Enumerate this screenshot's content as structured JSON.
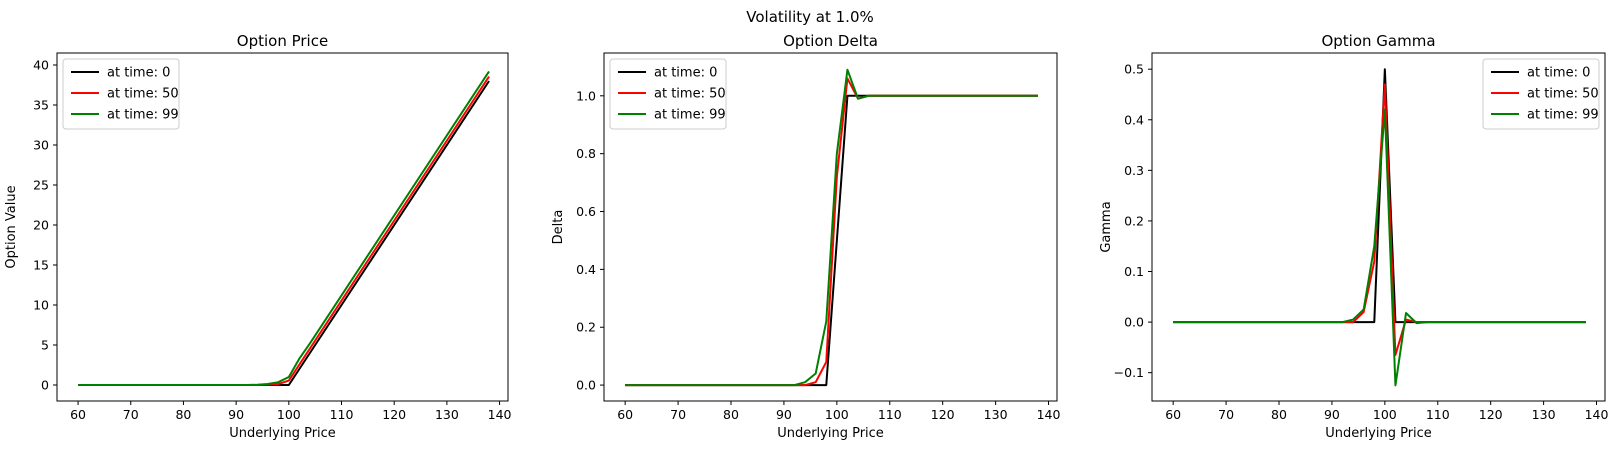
{
  "figure": {
    "suptitle": "Volatility at 1.0%"
  },
  "colors": {
    "t0": "#000000",
    "t50": "#ff0000",
    "t99": "#008000"
  },
  "chart_data": [
    {
      "type": "line",
      "title": "Option Price",
      "xlabel": "Underlying Price",
      "ylabel": "Option Value",
      "xlim": [
        56,
        141.6
      ],
      "ylim": [
        -2,
        41.5
      ],
      "xticks": [
        60,
        70,
        80,
        90,
        100,
        110,
        120,
        130,
        140
      ],
      "yticks": [
        0,
        5,
        10,
        15,
        20,
        25,
        30,
        35,
        40
      ],
      "legend": "top-left",
      "grid": false,
      "series": [
        {
          "name": "at time: 0",
          "color": "#000000",
          "x": [
            60,
            96,
            98,
            100,
            102,
            104,
            138
          ],
          "y": [
            0,
            0,
            0,
            0,
            2,
            4,
            38
          ]
        },
        {
          "name": "at time: 50",
          "color": "#ff0000",
          "x": [
            60,
            94,
            96,
            98,
            100,
            102,
            104,
            138
          ],
          "y": [
            0,
            0,
            0.05,
            0.12,
            0.55,
            2.55,
            4.55,
            38.55
          ]
        },
        {
          "name": "at time: 99",
          "color": "#008000",
          "x": [
            60,
            92,
            94,
            96,
            98,
            100,
            102,
            104,
            138
          ],
          "y": [
            0,
            0,
            0.03,
            0.12,
            0.35,
            1.0,
            3.3,
            5.2,
            39.2
          ]
        }
      ]
    },
    {
      "type": "line",
      "title": "Option Delta",
      "xlabel": "Underlying Price",
      "ylabel": "Delta",
      "xlim": [
        56,
        141.6
      ],
      "ylim": [
        -0.055,
        1.148
      ],
      "xticks": [
        60,
        70,
        80,
        90,
        100,
        110,
        120,
        130,
        140
      ],
      "yticks": [
        "0.0",
        "0.2",
        "0.4",
        "0.6",
        "0.8",
        "1.0"
      ],
      "legend": "top-left",
      "grid": false,
      "series": [
        {
          "name": "at time: 0",
          "color": "#000000",
          "x": [
            60,
            98,
            100,
            102,
            104,
            106,
            138
          ],
          "y": [
            0,
            0,
            0.5,
            1.0,
            1.0,
            1.0,
            1.0
          ]
        },
        {
          "name": "at time: 50",
          "color": "#ff0000",
          "x": [
            60,
            94,
            96,
            98,
            100,
            102,
            104,
            106,
            138
          ],
          "y": [
            0,
            0,
            0.01,
            0.08,
            0.72,
            1.06,
            0.99,
            1.0,
            1.0
          ]
        },
        {
          "name": "at time: 99",
          "color": "#008000",
          "x": [
            60,
            92,
            94,
            96,
            98,
            100,
            102,
            104,
            106,
            138
          ],
          "y": [
            0,
            0,
            0.01,
            0.04,
            0.22,
            0.8,
            1.09,
            0.99,
            1.0,
            1.0
          ]
        }
      ]
    },
    {
      "type": "line",
      "title": "Option Gamma",
      "xlabel": "Underlying Price",
      "ylabel": "Gamma",
      "xlim": [
        56,
        141.6
      ],
      "ylim": [
        -0.156,
        0.532
      ],
      "xticks": [
        60,
        70,
        80,
        90,
        100,
        110,
        120,
        130,
        140
      ],
      "yticks": [
        "−0.1",
        "0.0",
        "0.1",
        "0.2",
        "0.3",
        "0.4",
        "0.5"
      ],
      "legend": "top-right",
      "grid": false,
      "series": [
        {
          "name": "at time: 0",
          "color": "#000000",
          "x": [
            60,
            98,
            100,
            102,
            104,
            138
          ],
          "y": [
            0,
            0,
            0.5,
            0,
            0,
            0
          ]
        },
        {
          "name": "at time: 50",
          "color": "#ff0000",
          "x": [
            60,
            94,
            96,
            98,
            100,
            102,
            104,
            106,
            138
          ],
          "y": [
            0,
            0,
            0.02,
            0.12,
            0.47,
            -0.065,
            0.005,
            0,
            0
          ]
        },
        {
          "name": "at time: 99",
          "color": "#008000",
          "x": [
            60,
            92,
            94,
            96,
            98,
            100,
            102,
            104,
            106,
            108,
            138
          ],
          "y": [
            0,
            0,
            0.005,
            0.025,
            0.15,
            0.42,
            -0.125,
            0.018,
            -0.002,
            0,
            0
          ]
        }
      ]
    }
  ]
}
